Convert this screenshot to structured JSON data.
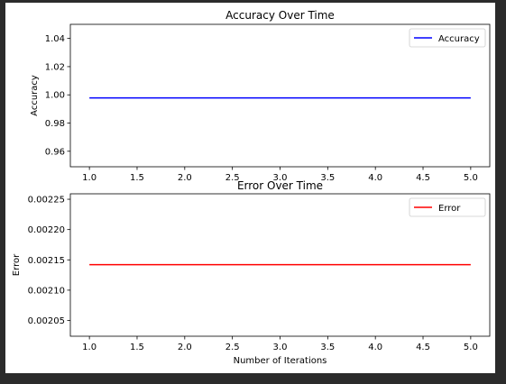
{
  "chart_data": [
    {
      "type": "line",
      "title": "Accuracy Over Time",
      "xlabel": "",
      "ylabel": "Accuracy",
      "x_ticks": [
        "1.0",
        "1.5",
        "2.0",
        "2.5",
        "3.0",
        "3.5",
        "4.0",
        "4.5",
        "5.0"
      ],
      "y_ticks": [
        "0.96",
        "0.98",
        "1.00",
        "1.02",
        "1.04"
      ],
      "xlim": [
        0.8,
        5.2
      ],
      "ylim": [
        0.949,
        1.05
      ],
      "series": [
        {
          "name": "Accuracy",
          "color": "#0000ff",
          "x": [
            1,
            2,
            3,
            4,
            5
          ],
          "y": [
            0.99786,
            0.99786,
            0.99786,
            0.99786,
            0.99786
          ]
        }
      ],
      "legend": "upper right",
      "grid": false
    },
    {
      "type": "line",
      "title": "Error Over Time",
      "xlabel": "Number of Iterations",
      "ylabel": "Error",
      "x_ticks": [
        "1.0",
        "1.5",
        "2.0",
        "2.5",
        "3.0",
        "3.5",
        "4.0",
        "4.5",
        "5.0"
      ],
      "y_ticks": [
        "0.00205",
        "0.00210",
        "0.00215",
        "0.00220",
        "0.00225"
      ],
      "xlim": [
        0.8,
        5.2
      ],
      "ylim": [
        0.002024,
        0.002259
      ],
      "series": [
        {
          "name": "Error",
          "color": "#ff0000",
          "x": [
            1,
            2,
            3,
            4,
            5
          ],
          "y": [
            0.002142,
            0.002142,
            0.002142,
            0.002142,
            0.002142
          ]
        }
      ],
      "legend": "upper right",
      "grid": false
    }
  ]
}
